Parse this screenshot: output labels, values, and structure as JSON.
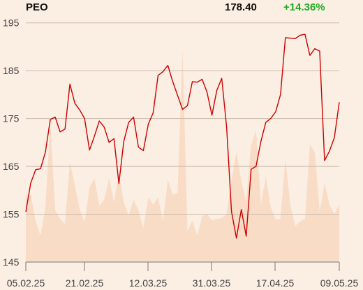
{
  "header": {
    "ticker": "PEO",
    "price": "178.40",
    "change": "+14.36%"
  },
  "colors": {
    "background": "#fbeee3",
    "price_line": "#cc0000",
    "volume_fill": "#f8dcc6",
    "grid": "#c9b8aa",
    "axis": "#777777",
    "change_positive": "#22aa22"
  },
  "chart_data": {
    "type": "line",
    "title": "",
    "xlabel": "",
    "ylabel": "",
    "ylim": [
      145,
      197
    ],
    "yticks": [
      145,
      155,
      165,
      175,
      185,
      195
    ],
    "xticks": [
      "05.02.25",
      "21.02.25",
      "12.03.25",
      "31.03.25",
      "17.04.25",
      "09.05.25"
    ],
    "grid": true,
    "series": [
      {
        "values": [
          155.5,
          161.5,
          164.3,
          164.5,
          168,
          174.8,
          175.3,
          172.2,
          172.8,
          182.2,
          178.2,
          176.8,
          175,
          168.4,
          171.3,
          174.5,
          173.2,
          170,
          170.8,
          161.4,
          170.2,
          174.2,
          175.3,
          169,
          168.3,
          173.8,
          176.2,
          184,
          184.8,
          186.1,
          182.7,
          179.8,
          176.9,
          177.7,
          182.7,
          182.6,
          183.2,
          180.5,
          175.7,
          180.9,
          183.4,
          173.2,
          155.5,
          150,
          156,
          150.4,
          164.4,
          165,
          170.2,
          174.2,
          175,
          176.4,
          180,
          191.9,
          191.8,
          191.7,
          192.4,
          192.6,
          188.2,
          189.6,
          189.1,
          166.2,
          168.2,
          171,
          178.4
        ]
      },
      {
        "kind": "volume",
        "values": [
          159,
          159.2,
          153.5,
          150.5,
          156.5,
          174,
          155.8,
          154,
          153,
          166,
          161,
          156,
          153.3,
          160.5,
          162.5,
          156.8,
          158,
          162.5,
          157.5,
          163.5,
          157.5,
          154.7,
          158,
          155.8,
          152,
          158.5,
          157,
          158.5,
          153.5,
          162.2,
          159,
          159.5,
          189.5,
          151.5,
          153.6,
          150.6,
          154.5,
          155,
          153.7,
          154,
          154.2,
          155,
          162,
          168,
          162,
          157.5,
          169.5,
          172.5,
          157,
          162.8,
          156.5,
          153.9,
          154,
          166.5,
          157,
          152.5,
          153.5,
          154,
          169.5,
          168,
          155.5,
          161.5,
          157,
          155,
          157
        ]
      }
    ]
  }
}
